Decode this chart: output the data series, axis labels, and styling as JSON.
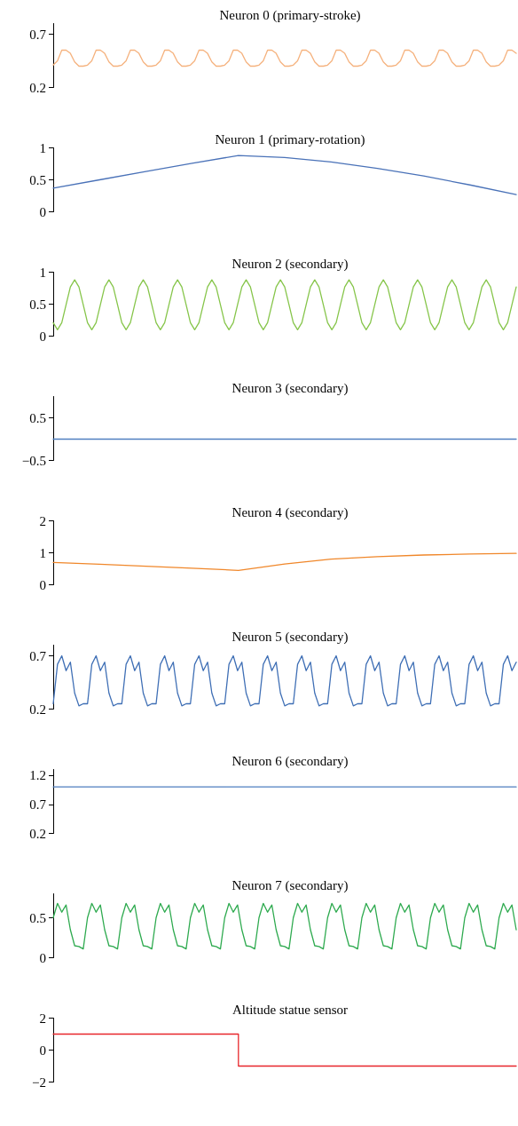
{
  "chart_data": [
    {
      "type": "line",
      "title": "Neuron 0 (primary-stroke)",
      "tick_labels": "y",
      "marker": "none",
      "ylim": [
        0.2,
        0.8
      ],
      "yticks": [
        0.2,
        0.7
      ],
      "categories": [
        null,
        null,
        null,
        null,
        null,
        null,
        null,
        null,
        null,
        null,
        null,
        null,
        null,
        null,
        null,
        null,
        null,
        null,
        null,
        null,
        null,
        null,
        null,
        null,
        null,
        null,
        null,
        null,
        null,
        null,
        null,
        null,
        null,
        null,
        null,
        null,
        null,
        null,
        null,
        null,
        null,
        null,
        null,
        null,
        null,
        null,
        null,
        null,
        null,
        null,
        null,
        null,
        null,
        null,
        null,
        null,
        null,
        null,
        null,
        null,
        null,
        null,
        null,
        null,
        null,
        null,
        null,
        null,
        null,
        null,
        null,
        null,
        null,
        null,
        null,
        null,
        null,
        null,
        null,
        null,
        null,
        null,
        null,
        null,
        null,
        null,
        null,
        null,
        null,
        null,
        null,
        null,
        null,
        null,
        null,
        null,
        null,
        null,
        null,
        null,
        null,
        null,
        null,
        null,
        null,
        null,
        null,
        null,
        null
      ],
      "series": [
        {
          "color": "#f5b27e",
          "values": [
            0.41,
            0.45,
            0.55,
            0.55,
            0.52,
            0.44,
            0.4,
            0.4,
            0.41,
            0.45,
            0.55,
            0.55,
            0.52,
            0.44,
            0.4,
            0.4,
            0.41,
            0.45,
            0.55,
            0.55,
            0.52,
            0.44,
            0.4,
            0.4,
            0.41,
            0.45,
            0.55,
            0.55,
            0.52,
            0.44,
            0.4,
            0.4,
            0.41,
            0.45,
            0.55,
            0.55,
            0.52,
            0.44,
            0.4,
            0.4,
            0.41,
            0.45,
            0.55,
            0.55,
            0.52,
            0.44,
            0.4,
            0.4,
            0.41,
            0.45,
            0.55,
            0.55,
            0.52,
            0.44,
            0.4,
            0.4,
            0.41,
            0.45,
            0.55,
            0.55,
            0.52,
            0.44,
            0.4,
            0.4,
            0.41,
            0.45,
            0.55,
            0.55,
            0.52,
            0.44,
            0.4,
            0.4,
            0.41,
            0.45,
            0.55,
            0.55,
            0.52,
            0.44,
            0.4,
            0.4,
            0.41,
            0.45,
            0.55,
            0.55,
            0.52,
            0.44,
            0.4,
            0.4,
            0.41,
            0.45,
            0.55,
            0.55,
            0.52,
            0.44,
            0.4,
            0.4,
            0.41,
            0.45,
            0.55,
            0.55,
            0.52,
            0.44,
            0.4,
            0.4,
            0.41,
            0.45,
            0.55,
            0.55,
            0.52
          ]
        }
      ]
    },
    {
      "type": "line",
      "title": "Neuron 1 (primary-rotation)",
      "tick_labels": "y",
      "marker": "none",
      "ylim": [
        0,
        1
      ],
      "yticks": [
        0,
        0.5,
        1
      ],
      "categories": [
        null,
        null,
        null,
        null,
        null,
        null,
        null,
        null,
        null,
        null,
        null
      ],
      "series": [
        {
          "color": "#4a72b8",
          "values": [
            0.37,
            0.5,
            0.63,
            0.76,
            0.88,
            0.85,
            0.78,
            0.68,
            0.56,
            0.42,
            0.27
          ]
        }
      ]
    },
    {
      "type": "line",
      "title": "Neuron 2 (secondary)",
      "tick_labels": "y",
      "marker": "none",
      "ylim": [
        0,
        1
      ],
      "yticks": [
        0,
        0.5,
        1
      ],
      "categories": [
        null,
        null,
        null,
        null,
        null,
        null,
        null,
        null,
        null,
        null,
        null,
        null,
        null,
        null,
        null,
        null,
        null,
        null,
        null,
        null,
        null,
        null,
        null,
        null,
        null,
        null,
        null,
        null,
        null,
        null,
        null,
        null,
        null,
        null,
        null,
        null,
        null,
        null,
        null,
        null,
        null,
        null,
        null,
        null,
        null,
        null,
        null,
        null,
        null,
        null,
        null,
        null,
        null,
        null,
        null,
        null,
        null,
        null,
        null,
        null,
        null,
        null,
        null,
        null,
        null,
        null,
        null,
        null,
        null,
        null,
        null,
        null,
        null,
        null,
        null,
        null,
        null,
        null,
        null,
        null,
        null,
        null,
        null,
        null,
        null,
        null,
        null,
        null,
        null,
        null,
        null,
        null,
        null,
        null,
        null,
        null,
        null,
        null,
        null,
        null,
        null,
        null,
        null,
        null,
        null,
        null,
        null,
        null,
        null
      ],
      "series": [
        {
          "color": "#86c54a",
          "values": [
            0.21,
            0.1,
            0.21,
            0.49,
            0.77,
            0.88,
            0.77,
            0.49,
            0.21,
            0.1,
            0.21,
            0.49,
            0.77,
            0.88,
            0.77,
            0.49,
            0.21,
            0.1,
            0.21,
            0.49,
            0.77,
            0.88,
            0.77,
            0.49,
            0.21,
            0.1,
            0.21,
            0.49,
            0.77,
            0.88,
            0.77,
            0.49,
            0.21,
            0.1,
            0.21,
            0.49,
            0.77,
            0.88,
            0.77,
            0.49,
            0.21,
            0.1,
            0.21,
            0.49,
            0.77,
            0.88,
            0.77,
            0.49,
            0.21,
            0.1,
            0.21,
            0.49,
            0.77,
            0.88,
            0.77,
            0.49,
            0.21,
            0.1,
            0.21,
            0.49,
            0.77,
            0.88,
            0.77,
            0.49,
            0.21,
            0.1,
            0.21,
            0.49,
            0.77,
            0.88,
            0.77,
            0.49,
            0.21,
            0.1,
            0.21,
            0.49,
            0.77,
            0.88,
            0.77,
            0.49,
            0.21,
            0.1,
            0.21,
            0.49,
            0.77,
            0.88,
            0.77,
            0.49,
            0.21,
            0.1,
            0.21,
            0.49,
            0.77,
            0.88,
            0.77,
            0.49,
            0.21,
            0.1,
            0.21,
            0.49,
            0.77,
            0.88,
            0.77,
            0.49,
            0.21,
            0.1,
            0.21,
            0.49,
            0.77
          ]
        }
      ]
    },
    {
      "type": "line",
      "title": "Neuron 3 (secondary)",
      "tick_labels": "y",
      "marker": "none",
      "ylim": [
        -0.5,
        1
      ],
      "yticks": [
        {
          "value": -0.5,
          "label": "−0.5"
        },
        0.5
      ],
      "categories": [
        null,
        null,
        null,
        null,
        null,
        null,
        null,
        null,
        null,
        null,
        null
      ],
      "series": [
        {
          "color": "#4f7fc0",
          "values": [
            0,
            0,
            0,
            0,
            0,
            0,
            0,
            0,
            0,
            0,
            0
          ]
        }
      ]
    },
    {
      "type": "line",
      "title": "Neuron 4 (secondary)",
      "tick_labels": "y",
      "marker": "none",
      "ylim": [
        0,
        2
      ],
      "yticks": [
        0,
        1,
        2
      ],
      "categories": [
        null,
        null,
        null,
        null,
        null,
        null,
        null,
        null,
        null,
        null,
        null
      ],
      "series": [
        {
          "color": "#f0872a",
          "values": [
            0.7,
            0.64,
            0.58,
            0.52,
            0.45,
            0.65,
            0.8,
            0.88,
            0.93,
            0.96,
            0.98
          ]
        }
      ]
    },
    {
      "type": "line",
      "title": "Neuron 5 (secondary)",
      "tick_labels": "y",
      "marker": "none",
      "ylim": [
        0.2,
        0.8
      ],
      "yticks": [
        0.2,
        0.7
      ],
      "categories": [
        null,
        null,
        null,
        null,
        null,
        null,
        null,
        null,
        null,
        null,
        null,
        null,
        null,
        null,
        null,
        null,
        null,
        null,
        null,
        null,
        null,
        null,
        null,
        null,
        null,
        null,
        null,
        null,
        null,
        null,
        null,
        null,
        null,
        null,
        null,
        null,
        null,
        null,
        null,
        null,
        null,
        null,
        null,
        null,
        null,
        null,
        null,
        null,
        null,
        null,
        null,
        null,
        null,
        null,
        null,
        null,
        null,
        null,
        null,
        null,
        null,
        null,
        null,
        null,
        null,
        null,
        null,
        null,
        null,
        null,
        null,
        null,
        null,
        null,
        null,
        null,
        null,
        null,
        null,
        null,
        null,
        null,
        null,
        null,
        null,
        null,
        null,
        null,
        null,
        null,
        null,
        null,
        null,
        null,
        null,
        null,
        null,
        null,
        null,
        null,
        null,
        null,
        null,
        null,
        null,
        null,
        null,
        null,
        null
      ],
      "series": [
        {
          "color": "#3f6fb5",
          "values": [
            0.25,
            0.62,
            0.7,
            0.56,
            0.64,
            0.35,
            0.23,
            0.25,
            0.25,
            0.62,
            0.7,
            0.56,
            0.64,
            0.35,
            0.23,
            0.25,
            0.25,
            0.62,
            0.7,
            0.56,
            0.64,
            0.35,
            0.23,
            0.25,
            0.25,
            0.62,
            0.7,
            0.56,
            0.64,
            0.35,
            0.23,
            0.25,
            0.25,
            0.62,
            0.7,
            0.56,
            0.64,
            0.35,
            0.23,
            0.25,
            0.25,
            0.62,
            0.7,
            0.56,
            0.64,
            0.35,
            0.23,
            0.25,
            0.25,
            0.62,
            0.7,
            0.56,
            0.64,
            0.35,
            0.23,
            0.25,
            0.25,
            0.62,
            0.7,
            0.56,
            0.64,
            0.35,
            0.23,
            0.25,
            0.25,
            0.62,
            0.7,
            0.56,
            0.64,
            0.35,
            0.23,
            0.25,
            0.25,
            0.62,
            0.7,
            0.56,
            0.64,
            0.35,
            0.23,
            0.25,
            0.25,
            0.62,
            0.7,
            0.56,
            0.64,
            0.35,
            0.23,
            0.25,
            0.25,
            0.62,
            0.7,
            0.56,
            0.64,
            0.35,
            0.23,
            0.25,
            0.25,
            0.62,
            0.7,
            0.56,
            0.64,
            0.35,
            0.23,
            0.25,
            0.25,
            0.62,
            0.7,
            0.56,
            0.64
          ]
        }
      ]
    },
    {
      "type": "line",
      "title": "Neuron 6 (secondary)",
      "tick_labels": "y",
      "marker": "none",
      "ylim": [
        0.2,
        1.3
      ],
      "yticks": [
        0.2,
        0.7,
        1.2
      ],
      "categories": [
        null,
        null,
        null,
        null,
        null,
        null,
        null,
        null,
        null,
        null,
        null
      ],
      "series": [
        {
          "color": "#4f7fc0",
          "values": [
            1,
            1,
            1,
            1,
            1,
            1,
            1,
            1,
            1,
            1,
            1
          ]
        }
      ]
    },
    {
      "type": "line",
      "title": "Neuron 7 (secondary)",
      "tick_labels": "y",
      "marker": "none",
      "ylim": [
        0,
        0.8
      ],
      "yticks": [
        0,
        0.5
      ],
      "categories": [
        null,
        null,
        null,
        null,
        null,
        null,
        null,
        null,
        null,
        null,
        null,
        null,
        null,
        null,
        null,
        null,
        null,
        null,
        null,
        null,
        null,
        null,
        null,
        null,
        null,
        null,
        null,
        null,
        null,
        null,
        null,
        null,
        null,
        null,
        null,
        null,
        null,
        null,
        null,
        null,
        null,
        null,
        null,
        null,
        null,
        null,
        null,
        null,
        null,
        null,
        null,
        null,
        null,
        null,
        null,
        null,
        null,
        null,
        null,
        null,
        null,
        null,
        null,
        null,
        null,
        null,
        null,
        null,
        null,
        null,
        null,
        null,
        null,
        null,
        null,
        null,
        null,
        null,
        null,
        null,
        null,
        null,
        null,
        null,
        null,
        null,
        null,
        null,
        null,
        null,
        null,
        null,
        null,
        null,
        null,
        null,
        null,
        null,
        null,
        null,
        null,
        null,
        null,
        null,
        null,
        null,
        null,
        null,
        null
      ],
      "series": [
        {
          "color": "#2eaa4f",
          "values": [
            0.5,
            0.68,
            0.57,
            0.66,
            0.35,
            0.15,
            0.14,
            0.11,
            0.5,
            0.68,
            0.57,
            0.66,
            0.35,
            0.15,
            0.14,
            0.11,
            0.5,
            0.68,
            0.57,
            0.66,
            0.35,
            0.15,
            0.14,
            0.11,
            0.5,
            0.68,
            0.57,
            0.66,
            0.35,
            0.15,
            0.14,
            0.11,
            0.5,
            0.68,
            0.57,
            0.66,
            0.35,
            0.15,
            0.14,
            0.11,
            0.5,
            0.68,
            0.57,
            0.66,
            0.35,
            0.15,
            0.14,
            0.11,
            0.5,
            0.68,
            0.57,
            0.66,
            0.35,
            0.15,
            0.14,
            0.11,
            0.5,
            0.68,
            0.57,
            0.66,
            0.35,
            0.15,
            0.14,
            0.11,
            0.5,
            0.68,
            0.57,
            0.66,
            0.35,
            0.15,
            0.14,
            0.11,
            0.5,
            0.68,
            0.57,
            0.66,
            0.35,
            0.15,
            0.14,
            0.11,
            0.5,
            0.68,
            0.57,
            0.66,
            0.35,
            0.15,
            0.14,
            0.11,
            0.5,
            0.68,
            0.57,
            0.66,
            0.35,
            0.15,
            0.14,
            0.11,
            0.5,
            0.68,
            0.57,
            0.66,
            0.35,
            0.15,
            0.14,
            0.11,
            0.5,
            0.68,
            0.57,
            0.66,
            0.35
          ]
        }
      ]
    },
    {
      "type": "step",
      "title": "Altitude statue sensor",
      "tick_labels": "y",
      "marker": "none",
      "ylim": [
        -2,
        2
      ],
      "yticks": [
        {
          "value": -2,
          "label": "−2"
        },
        0,
        2
      ],
      "categories": [
        null,
        null,
        null,
        null,
        null,
        null,
        null,
        null,
        null,
        null,
        null
      ],
      "series": [
        {
          "color": "#e8262b",
          "values": [
            1,
            1,
            1,
            1,
            -1,
            -1,
            -1,
            -1,
            -1,
            -1,
            -1
          ]
        }
      ]
    }
  ]
}
